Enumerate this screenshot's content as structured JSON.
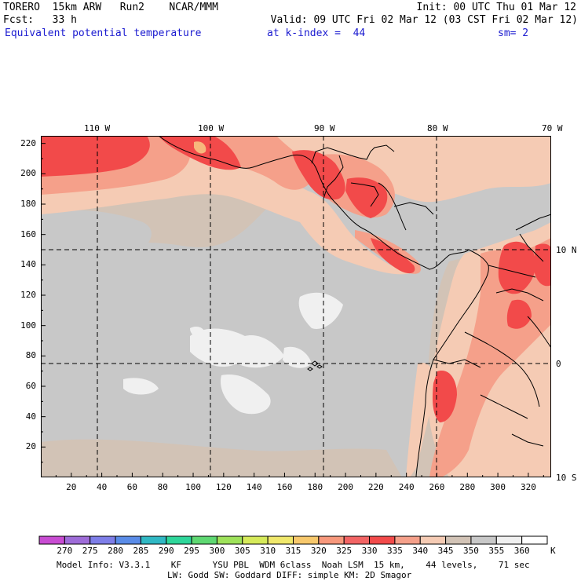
{
  "header": {
    "line1_left": "TORERO  15km ARW   Run2    NCAR/MMM",
    "line1_right": "Init: 00 UTC Thu 01 Mar 12",
    "line2_left": "Fcst:   33 h",
    "line2_right": "Valid: 09 UTC Fri 02 Mar 12 (03 CST Fri 02 Mar 12)",
    "line3_field": "Equivalent potential temperature",
    "line3_level": "at k-index =  44",
    "line3_sm": "sm= 2"
  },
  "map": {
    "lon_labels": [
      "110 W",
      "100 W",
      "90 W",
      "80 W",
      "70 W"
    ],
    "lat_labels": [
      "10 N",
      "0",
      "10 S"
    ],
    "y_ticks": [
      "220",
      "200",
      "180",
      "160",
      "140",
      "120",
      "100",
      "80",
      "60",
      "40",
      "20"
    ],
    "x_ticks": [
      "20",
      "40",
      "60",
      "80",
      "100",
      "120",
      "140",
      "160",
      "180",
      "200",
      "220",
      "240",
      "260",
      "280",
      "300",
      "320"
    ],
    "colors": {
      "base": "#d2c3b6",
      "gray": "#c8c8c8",
      "white": "#f0f0f0",
      "peach": "#f5cbb4",
      "salmon": "#f5a08a",
      "red": "#f24a4a",
      "orange": "#f7b87c"
    }
  },
  "colorbar": {
    "labels": [
      "270",
      "275",
      "280",
      "285",
      "290",
      "295",
      "300",
      "305",
      "310",
      "315",
      "320",
      "325",
      "330",
      "335",
      "340",
      "345",
      "350",
      "355",
      "360"
    ],
    "unit": "K",
    "colors": [
      "#c84cd2",
      "#9e6cd8",
      "#7e7ee8",
      "#5a8ce8",
      "#30b8c4",
      "#2ed69a",
      "#5ed872",
      "#9ee25a",
      "#d6ea5a",
      "#f0e86c",
      "#f7c86c",
      "#f7987c",
      "#f26464",
      "#f24a4a",
      "#f5a08a",
      "#f5cbb4",
      "#d2c3b6",
      "#c8c8c8",
      "#f0f0f0",
      "#ffffff"
    ]
  },
  "footer": {
    "line1": "Model Info: V3.3.1    KF      YSU PBL  WDM 6class  Noah LSM  15 km,    44 levels,    71 sec",
    "line2": "LW: Godd SW: Goddard DIFF: simple KM: 2D Smagor"
  }
}
